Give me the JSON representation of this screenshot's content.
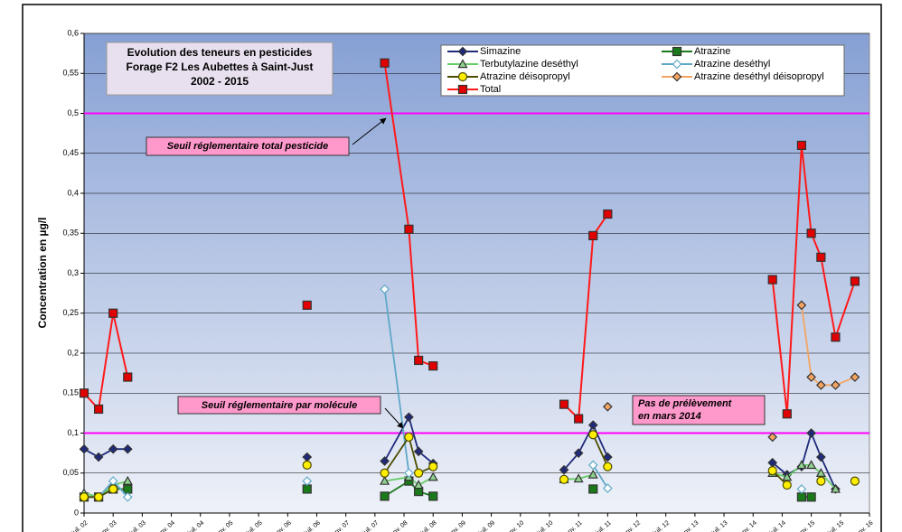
{
  "chart_data": {
    "type": "line",
    "title_lines": [
      "Evolution des teneurs en pesticides",
      "Forage F2 Les Aubettes à Saint-Just",
      "2002 - 2015"
    ],
    "y_label": "Concentration en µg/l",
    "ylim": [
      0,
      0.6
    ],
    "yticks": [
      0,
      {
        "value": 0.05,
        "label": "0,05"
      },
      {
        "value": 0.1,
        "label": "0,1"
      },
      {
        "value": 0.15,
        "label": "0,15"
      },
      {
        "value": 0.2,
        "label": "0,2"
      },
      {
        "value": 0.25,
        "label": "0,25"
      },
      {
        "value": 0.3,
        "label": "0,3"
      },
      {
        "value": 0.35,
        "label": "0,35"
      },
      {
        "value": 0.4,
        "label": "0,4"
      },
      {
        "value": 0.45,
        "label": "0,45"
      },
      {
        "value": 0.5,
        "label": "0,5"
      },
      {
        "value": 0.55,
        "label": "0,55"
      },
      {
        "value": 0.6,
        "label": "0,6"
      }
    ],
    "grid": true,
    "xlim": [
      "2002-07",
      "2016-01"
    ],
    "xticks": [
      {
        "value": "2002-07",
        "label": "juil. 02"
      },
      {
        "value": "2003-01",
        "label": "janv. 03"
      },
      {
        "value": "2003-07",
        "label": "juil. 03"
      },
      {
        "value": "2004-01",
        "label": "janv. 04"
      },
      {
        "value": "2004-07",
        "label": "juil. 04"
      },
      {
        "value": "2005-01",
        "label": "janv. 05"
      },
      {
        "value": "2005-07",
        "label": "juil. 05"
      },
      {
        "value": "2006-01",
        "label": "janv. 06"
      },
      {
        "value": "2006-07",
        "label": "juil. 06"
      },
      {
        "value": "2007-01",
        "label": "janv. 07"
      },
      {
        "value": "2007-07",
        "label": "juil. 07"
      },
      {
        "value": "2008-01",
        "label": "janv. 08"
      },
      {
        "value": "2008-07",
        "label": "juil. 08"
      },
      {
        "value": "2009-01",
        "label": "janv. 09"
      },
      {
        "value": "2009-07",
        "label": "juil. 09"
      },
      {
        "value": "2010-01",
        "label": "janv. 10"
      },
      {
        "value": "2010-07",
        "label": "juil. 10"
      },
      {
        "value": "2011-01",
        "label": "janv. 11"
      },
      {
        "value": "2011-07",
        "label": "juil. 11"
      },
      {
        "value": "2012-01",
        "label": "janv. 12"
      },
      {
        "value": "2012-07",
        "label": "juil. 12"
      },
      {
        "value": "2013-01",
        "label": "janv. 13"
      },
      {
        "value": "2013-07",
        "label": "juil. 13"
      },
      {
        "value": "2014-01",
        "label": "janv. 14"
      },
      {
        "value": "2014-07",
        "label": "juil. 14"
      },
      {
        "value": "2015-01",
        "label": "janv. 15"
      },
      {
        "value": "2015-07",
        "label": "juil. 15"
      },
      {
        "value": "2016-01",
        "label": "janv. 16"
      }
    ],
    "x": [
      "2002-07",
      "2002-10",
      "2003-01",
      "2003-04",
      "2004-12",
      "2006-05",
      "2007-01",
      "2007-09",
      "2008-02",
      "2008-04",
      "2008-07",
      "2009-09",
      "2010-10",
      "2011-01",
      "2011-04",
      "2011-07",
      "2013-01",
      "2014-05",
      "2014-08",
      "2014-11",
      "2015-01",
      "2015-03",
      "2015-06",
      "2015-10"
    ],
    "series": [
      {
        "name": "Simazine",
        "color": "#1f2a7a",
        "marker": "diamond",
        "marker_color": "#1f2a7a",
        "values": [
          0.08,
          0.07,
          0.08,
          0.08,
          null,
          0.07,
          null,
          0.065,
          0.12,
          0.077,
          0.062,
          null,
          0.054,
          0.075,
          0.11,
          0.07,
          null,
          0.063,
          0.048,
          0.058,
          0.1,
          0.07,
          0.03,
          null
        ]
      },
      {
        "name": "Atrazine",
        "color": "#1a7a1a",
        "marker": "square",
        "marker_color": "#1a7a1a",
        "values": [
          0.02,
          0.02,
          0.03,
          0.03,
          null,
          0.03,
          null,
          0.021,
          0.04,
          0.027,
          0.021,
          null,
          null,
          null,
          0.03,
          null,
          null,
          null,
          null,
          0.02,
          0.02,
          null,
          null,
          null
        ]
      },
      {
        "name": "Terbutylazine deséthyl",
        "color": "#66cc66",
        "marker": "triangle",
        "marker_color": "#8fd18f",
        "values": [
          0.025,
          0.02,
          0.035,
          0.04,
          null,
          null,
          null,
          0.04,
          0.045,
          0.035,
          0.045,
          null,
          0.042,
          0.043,
          0.048,
          null,
          null,
          0.05,
          0.045,
          0.06,
          0.06,
          0.05,
          0.03,
          null
        ]
      },
      {
        "name": "Atrazine deséthyl",
        "color": "#5fa8c8",
        "marker": "diamond",
        "marker_color": "#ffffff",
        "values": [
          0.02,
          0.02,
          0.04,
          0.02,
          null,
          0.04,
          null,
          0.28,
          0.05,
          null,
          null,
          null,
          null,
          null,
          0.06,
          0.031,
          null,
          null,
          null,
          0.03,
          null,
          null,
          null,
          null
        ]
      },
      {
        "name": "Atrazine déisopropyl",
        "color": "#4d4d00",
        "marker": "circle",
        "marker_color": "#ffee00",
        "values": [
          0.02,
          0.02,
          0.03,
          null,
          null,
          0.06,
          null,
          0.05,
          0.095,
          0.05,
          0.058,
          null,
          0.042,
          null,
          0.098,
          0.058,
          null,
          0.053,
          0.035,
          null,
          null,
          0.04,
          null,
          0.04
        ]
      },
      {
        "name": "Atrazine deséthyl déisopropyl",
        "color": "#f4a460",
        "marker": "diamond",
        "marker_color": "#f4a460",
        "values": [
          null,
          null,
          null,
          null,
          null,
          null,
          null,
          null,
          null,
          null,
          null,
          null,
          null,
          null,
          null,
          0.133,
          null,
          0.095,
          null,
          0.26,
          0.17,
          0.16,
          0.16,
          0.17
        ]
      },
      {
        "name": "Total",
        "color": "#ff1a1a",
        "marker": "square",
        "marker_color": "#e00000",
        "values": [
          0.15,
          0.13,
          0.25,
          0.17,
          null,
          0.26,
          null,
          0.563,
          0.355,
          0.191,
          0.184,
          null,
          0.136,
          0.118,
          0.347,
          0.374,
          null,
          0.292,
          0.124,
          0.46,
          0.35,
          0.32,
          0.22,
          0.29
        ]
      }
    ],
    "reference_lines": [
      0.5,
      0.1
    ],
    "reference_color": "#ff00ff",
    "annotations": [
      {
        "lines": [
          "Seuil réglementaire total pesticide"
        ]
      },
      {
        "lines": [
          "Seuil réglementaire par molécule"
        ]
      },
      {
        "lines": [
          "Pas de prélèvement",
          "en mars 2014"
        ]
      }
    ]
  }
}
